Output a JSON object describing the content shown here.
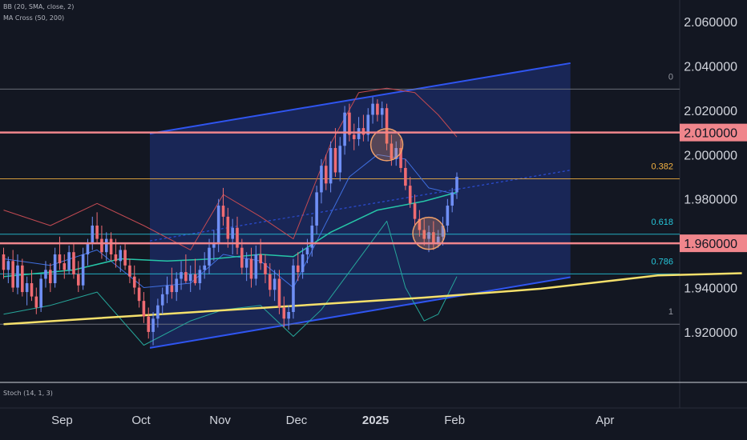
{
  "indicators": {
    "bb": "BB (20, SMA, close, 2)",
    "ma_cross": "MA Cross (50, 200)",
    "stoch": "Stoch (14, 1, 3)"
  },
  "colors": {
    "background": "#131722",
    "up": "#6f8ff5",
    "down": "#ef6b72",
    "channel": "#2f55f0",
    "ma50": "#26c6a8",
    "ma200": "#f5e06b",
    "bb_upper": "#c24a52",
    "bb_lower": "#26a69a",
    "level_line": "#f0868c",
    "fib_0382": "#f5b342",
    "fib_0618": "#26c6da",
    "circle": "#f0a06b"
  },
  "chart_data": {
    "type": "candlestick",
    "price_axis": {
      "ticks": [
        "2.060000",
        "2.040000",
        "2.020000",
        "2.000000",
        "1.980000",
        "1.960000",
        "1.940000",
        "1.920000"
      ],
      "values": [
        2.06,
        2.04,
        2.02,
        2.0,
        1.98,
        1.96,
        1.94,
        1.92
      ],
      "range": [
        1.903,
        2.068
      ]
    },
    "time_axis": {
      "labels": [
        "Sep",
        "Oct",
        "Nov",
        "Dec",
        "2025",
        "Feb",
        "Apr"
      ],
      "bold": [
        false,
        false,
        false,
        false,
        true,
        false,
        false
      ]
    },
    "highlight_levels": [
      {
        "value": 2.01,
        "label": "2.010000"
      },
      {
        "value": 1.96,
        "label": "1.960000"
      }
    ],
    "fibonacci": [
      {
        "ratio": "0",
        "price": 2.0296
      },
      {
        "ratio": "0.382",
        "price": 1.9891
      },
      {
        "ratio": "0.618",
        "price": 1.9641
      },
      {
        "ratio": "0.786",
        "price": 1.9462
      },
      {
        "ratio": "1",
        "price": 1.9235
      }
    ],
    "channel": {
      "start_date": "2024-10-01",
      "end_date": "2025-03-15",
      "upper": [
        2.0095,
        2.0413
      ],
      "lower": [
        1.9128,
        1.9447
      ],
      "mid": [
        1.9611,
        1.993
      ]
    },
    "ma200": [
      [
        0,
        1.9235
      ],
      [
        30,
        1.9275
      ],
      [
        60,
        1.9315
      ],
      [
        90,
        1.9355
      ],
      [
        115,
        1.9395
      ],
      [
        140,
        1.9455
      ],
      [
        158,
        1.9465
      ]
    ],
    "candles": [
      [
        1.955,
        1.958,
        1.944,
        1.948
      ],
      [
        1.948,
        1.954,
        1.942,
        1.952
      ],
      [
        1.952,
        1.957,
        1.938,
        1.94
      ],
      [
        1.94,
        1.955,
        1.937,
        1.95
      ],
      [
        1.95,
        1.953,
        1.936,
        1.938
      ],
      [
        1.938,
        1.945,
        1.932,
        1.942
      ],
      [
        1.942,
        1.948,
        1.934,
        1.936
      ],
      [
        1.936,
        1.94,
        1.928,
        1.931
      ],
      [
        1.931,
        1.946,
        1.929,
        1.944
      ],
      [
        1.944,
        1.952,
        1.94,
        1.948
      ],
      [
        1.948,
        1.951,
        1.938,
        1.942
      ],
      [
        1.942,
        1.958,
        1.94,
        1.955
      ],
      [
        1.955,
        1.963,
        1.948,
        1.951
      ],
      [
        1.951,
        1.955,
        1.944,
        1.948
      ],
      [
        1.948,
        1.959,
        1.946,
        1.956
      ],
      [
        1.956,
        1.96,
        1.944,
        1.946
      ],
      [
        1.946,
        1.952,
        1.938,
        1.941
      ],
      [
        1.941,
        1.958,
        1.939,
        1.955
      ],
      [
        1.955,
        1.962,
        1.95,
        1.96
      ],
      [
        1.96,
        1.972,
        1.957,
        1.968
      ],
      [
        1.968,
        1.974,
        1.96,
        1.962
      ],
      [
        1.962,
        1.968,
        1.953,
        1.956
      ],
      [
        1.956,
        1.965,
        1.952,
        1.962
      ],
      [
        1.962,
        1.965,
        1.952,
        1.955
      ],
      [
        1.955,
        1.962,
        1.949,
        1.952
      ],
      [
        1.952,
        1.959,
        1.947,
        1.957
      ],
      [
        1.957,
        1.96,
        1.948,
        1.95
      ],
      [
        1.95,
        1.953,
        1.942,
        1.945
      ],
      [
        1.945,
        1.95,
        1.937,
        1.94
      ],
      [
        1.94,
        1.944,
        1.931,
        1.934
      ],
      [
        1.934,
        1.938,
        1.924,
        1.927
      ],
      [
        1.927,
        1.931,
        1.917,
        1.92
      ],
      [
        1.92,
        1.929,
        1.914,
        1.926
      ],
      [
        1.926,
        1.935,
        1.922,
        1.932
      ],
      [
        1.932,
        1.94,
        1.928,
        1.937
      ],
      [
        1.937,
        1.945,
        1.933,
        1.941
      ],
      [
        1.941,
        1.949,
        1.935,
        1.938
      ],
      [
        1.938,
        1.947,
        1.934,
        1.944
      ],
      [
        1.944,
        1.952,
        1.939,
        1.947
      ],
      [
        1.947,
        1.955,
        1.942,
        1.943
      ],
      [
        1.943,
        1.95,
        1.938,
        1.946
      ],
      [
        1.946,
        1.953,
        1.941,
        1.942
      ],
      [
        1.942,
        1.95,
        1.939,
        1.948
      ],
      [
        1.948,
        1.956,
        1.944,
        1.95
      ],
      [
        1.95,
        1.962,
        1.946,
        1.958
      ],
      [
        1.958,
        1.966,
        1.952,
        1.96
      ],
      [
        1.96,
        1.98,
        1.956,
        1.977
      ],
      [
        1.977,
        1.985,
        1.968,
        1.972
      ],
      [
        1.972,
        1.976,
        1.958,
        1.962
      ],
      [
        1.962,
        1.971,
        1.955,
        1.967
      ],
      [
        1.967,
        1.972,
        1.955,
        1.958
      ],
      [
        1.958,
        1.962,
        1.946,
        1.949
      ],
      [
        1.949,
        1.956,
        1.943,
        1.953
      ],
      [
        1.953,
        1.958,
        1.94,
        1.944
      ],
      [
        1.944,
        1.959,
        1.941,
        1.955
      ],
      [
        1.955,
        1.962,
        1.948,
        1.951
      ],
      [
        1.951,
        1.955,
        1.942,
        1.946
      ],
      [
        1.946,
        1.951,
        1.936,
        1.939
      ],
      [
        1.939,
        1.948,
        1.934,
        1.944
      ],
      [
        1.944,
        1.948,
        1.928,
        1.931
      ],
      [
        1.931,
        1.936,
        1.922,
        1.926
      ],
      [
        1.926,
        1.932,
        1.921,
        1.929
      ],
      [
        1.929,
        1.953,
        1.926,
        1.95
      ],
      [
        1.95,
        1.956,
        1.943,
        1.947
      ],
      [
        1.947,
        1.958,
        1.944,
        1.955
      ],
      [
        1.955,
        1.962,
        1.951,
        1.958
      ],
      [
        1.958,
        1.972,
        1.954,
        1.968
      ],
      [
        1.968,
        1.986,
        1.964,
        1.983
      ],
      [
        1.983,
        1.998,
        1.978,
        1.995
      ],
      [
        1.995,
        2.0,
        1.984,
        1.987
      ],
      [
        1.987,
        2.006,
        1.983,
        2.003
      ],
      [
        2.003,
        2.012,
        1.99,
        1.992
      ],
      [
        1.992,
        2.008,
        1.988,
        2.004
      ],
      [
        2.004,
        2.022,
        2.0,
        2.019
      ],
      [
        2.019,
        2.023,
        2.006,
        2.009
      ],
      [
        2.009,
        2.014,
        2.002,
        2.007
      ],
      [
        2.007,
        2.017,
        2.004,
        2.012
      ],
      [
        2.012,
        2.018,
        2.006,
        2.009
      ],
      [
        2.009,
        2.021,
        2.006,
        2.018
      ],
      [
        2.018,
        2.026,
        2.014,
        2.023
      ],
      [
        2.023,
        2.025,
        2.015,
        2.018
      ],
      [
        2.018,
        2.024,
        2.012,
        2.021
      ],
      [
        2.021,
        2.023,
        2.002,
        2.005
      ],
      [
        2.005,
        2.009,
        1.995,
        1.998
      ],
      [
        1.998,
        2.006,
        1.995,
        2.003
      ],
      [
        2.003,
        2.007,
        1.992,
        1.994
      ],
      [
        1.994,
        1.998,
        1.984,
        1.986
      ],
      [
        1.986,
        1.99,
        1.976,
        1.978
      ],
      [
        1.978,
        1.982,
        1.968,
        1.971
      ],
      [
        1.971,
        1.975,
        1.963,
        1.966
      ],
      [
        1.966,
        1.971,
        1.959,
        1.962
      ],
      [
        1.962,
        1.968,
        1.956,
        1.965
      ],
      [
        1.965,
        1.97,
        1.957,
        1.96
      ],
      [
        1.96,
        1.966,
        1.958,
        1.963
      ],
      [
        1.963,
        1.972,
        1.959,
        1.968
      ],
      [
        1.968,
        1.98,
        1.965,
        1.977
      ],
      [
        1.977,
        1.985,
        1.974,
        1.983
      ],
      [
        1.983,
        1.992,
        1.98,
        1.99
      ]
    ],
    "bb_upper": [
      [
        0,
        1.975
      ],
      [
        10,
        1.968
      ],
      [
        20,
        1.978
      ],
      [
        30,
        1.968
      ],
      [
        40,
        1.957
      ],
      [
        47,
        1.982
      ],
      [
        55,
        1.972
      ],
      [
        62,
        1.962
      ],
      [
        70,
        2.005
      ],
      [
        76,
        2.028
      ],
      [
        82,
        2.03
      ],
      [
        88,
        2.028
      ],
      [
        93,
        2.018
      ],
      [
        97,
        2.008
      ]
    ],
    "bb_lower": [
      [
        0,
        1.928
      ],
      [
        10,
        1.932
      ],
      [
        20,
        1.938
      ],
      [
        30,
        1.914
      ],
      [
        40,
        1.925
      ],
      [
        47,
        1.93
      ],
      [
        55,
        1.932
      ],
      [
        62,
        1.918
      ],
      [
        68,
        1.93
      ],
      [
        75,
        1.95
      ],
      [
        82,
        1.97
      ],
      [
        86,
        1.94
      ],
      [
        90,
        1.925
      ],
      [
        93,
        1.928
      ],
      [
        97,
        1.945
      ]
    ],
    "bb_mid": [
      [
        0,
        1.953
      ],
      [
        10,
        1.95
      ],
      [
        20,
        1.957
      ],
      [
        30,
        1.94
      ],
      [
        40,
        1.942
      ],
      [
        47,
        1.955
      ],
      [
        55,
        1.952
      ],
      [
        62,
        1.94
      ],
      [
        68,
        1.965
      ],
      [
        74,
        1.99
      ],
      [
        80,
        2.0
      ],
      [
        86,
        1.998
      ],
      [
        91,
        1.985
      ],
      [
        97,
        1.982
      ]
    ],
    "ma50": [
      [
        0,
        1.945
      ],
      [
        15,
        1.948
      ],
      [
        25,
        1.953
      ],
      [
        35,
        1.952
      ],
      [
        45,
        1.953
      ],
      [
        55,
        1.955
      ],
      [
        62,
        1.954
      ],
      [
        70,
        1.965
      ],
      [
        80,
        1.975
      ],
      [
        90,
        1.979
      ],
      [
        97,
        1.983
      ]
    ]
  }
}
